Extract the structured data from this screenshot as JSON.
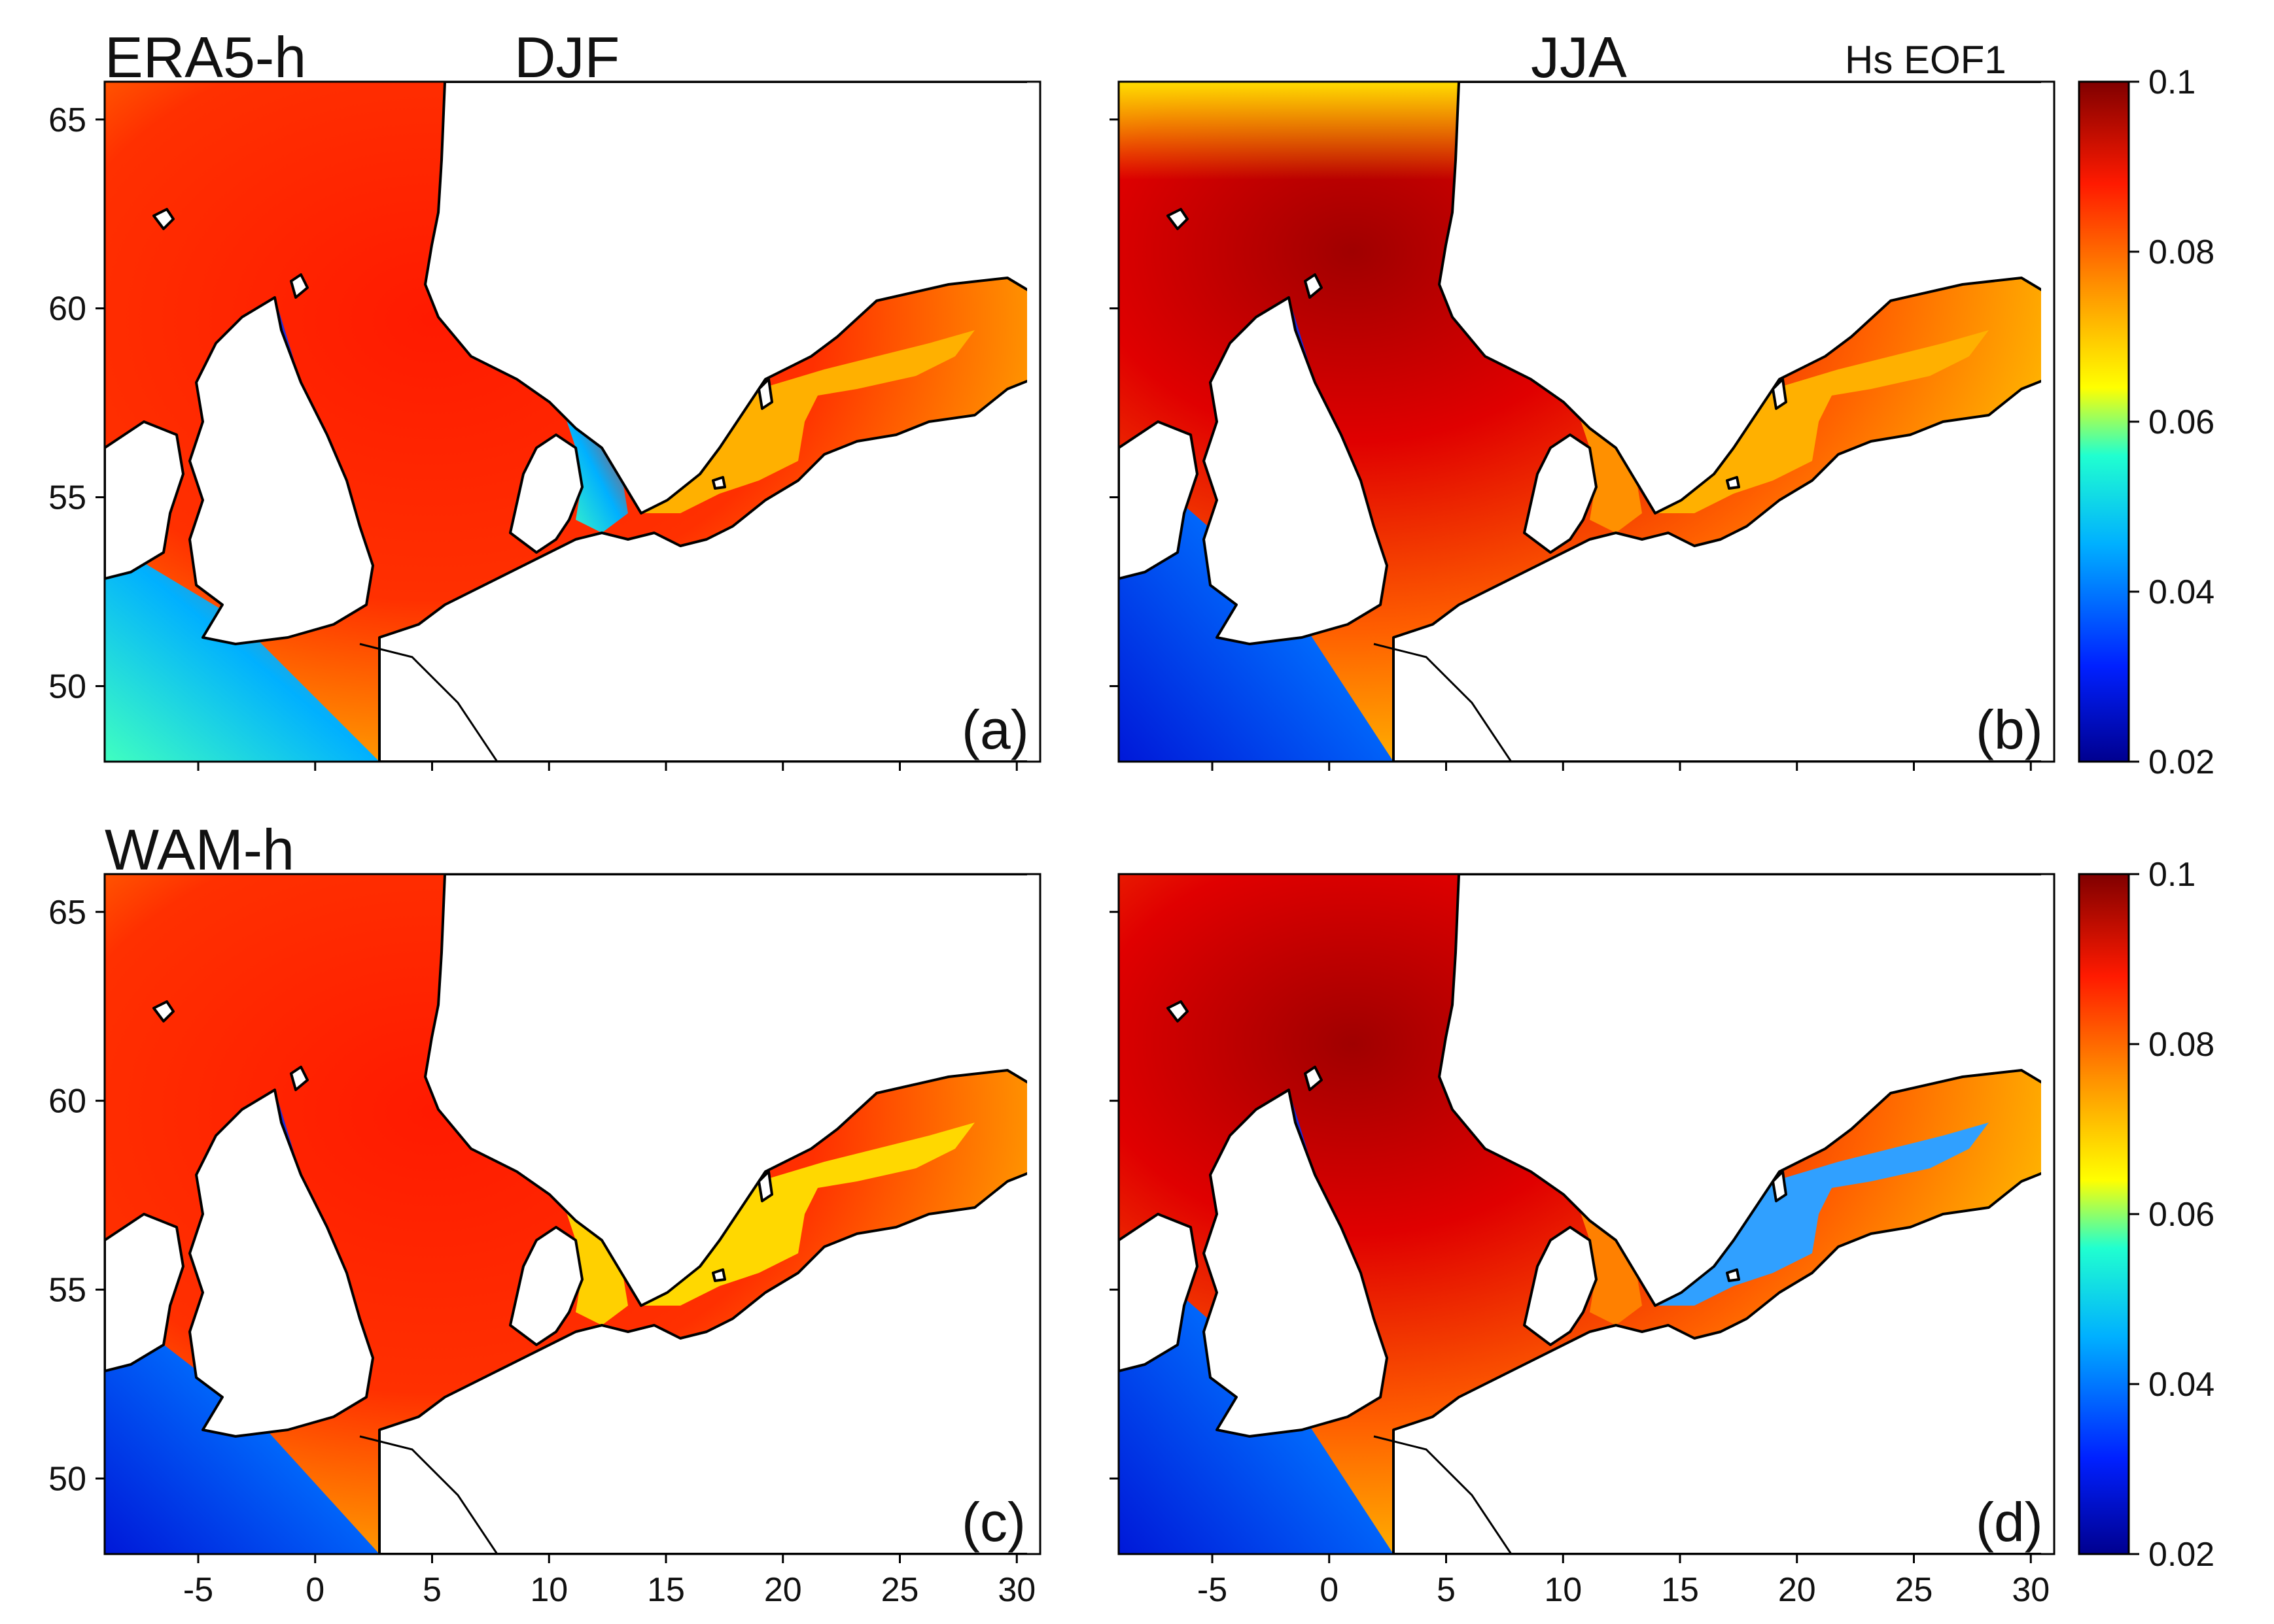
{
  "figure": {
    "row_titles": {
      "top": "ERA5-h",
      "bottom": "WAM-h"
    },
    "season_titles": {
      "winter": "DJF",
      "summer": "JJA"
    },
    "colorbar_title": "Hs EOF1"
  },
  "panels": [
    {
      "id": "a",
      "label": "(a)",
      "dataset": "ERA5-h",
      "season": "DJF"
    },
    {
      "id": "b",
      "label": "(b)",
      "dataset": "ERA5-h",
      "season": "JJA"
    },
    {
      "id": "c",
      "label": "(c)",
      "dataset": "WAM-h",
      "season": "DJF"
    },
    {
      "id": "d",
      "label": "(d)",
      "dataset": "WAM-h",
      "season": "JJA"
    }
  ],
  "axes": {
    "lon_ticks": [
      "-5",
      "0",
      "5",
      "10",
      "15",
      "20",
      "25",
      "30"
    ],
    "lat_ticks": [
      "50",
      "55",
      "60",
      "65"
    ],
    "lon_range": [
      -9,
      31
    ],
    "lat_range": [
      48,
      66
    ]
  },
  "colorbar": {
    "min": 0.02,
    "max": 0.1,
    "ticks": [
      "0.02",
      "0.04",
      "0.06",
      "0.08",
      "0.1"
    ],
    "colormap": "jet",
    "colors": [
      "#00008f",
      "#0020ff",
      "#00b0ff",
      "#20ffd0",
      "#ffff00",
      "#ff9000",
      "#ff1a00",
      "#800000"
    ]
  }
}
